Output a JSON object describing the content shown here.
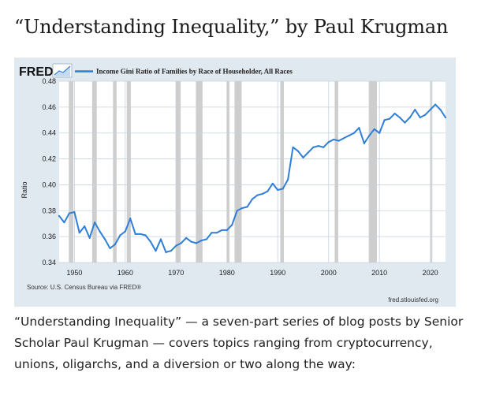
{
  "page": {
    "heading": "“Understanding Inequality,” by Paul Krugman",
    "caption": "“Understanding Inequality” — a seven-part series of blog posts by Senior Scholar Paul Krugman — covers topics ranging from cryptocurrency, unions, oligarchs, and a diversion or two along the way:"
  },
  "chart_data": {
    "type": "line",
    "logo_text": "FRED",
    "title": "Income Gini Ratio of Families by Race of Householder, All Races",
    "ylabel": "Ratio",
    "xlabel": "",
    "source": "Source: U.S. Census Bureau via FRED®",
    "site": "fred.stlouisfed.org",
    "line_color": "#2f7ed8",
    "recession_color": "#c9c9c9",
    "xlim": [
      1947,
      2023
    ],
    "ylim": [
      0.34,
      0.48
    ],
    "x_ticks": [
      1950,
      1960,
      1970,
      1980,
      1990,
      2000,
      2010,
      2020
    ],
    "y_ticks": [
      "0.34",
      "0.36",
      "0.38",
      "0.40",
      "0.42",
      "0.44",
      "0.46",
      "0.48"
    ],
    "recessions": [
      [
        1948.9,
        1949.8
      ],
      [
        1953.5,
        1954.4
      ],
      [
        1957.6,
        1958.3
      ],
      [
        1960.3,
        1961.1
      ],
      [
        1969.9,
        1970.9
      ],
      [
        1973.9,
        1975.2
      ],
      [
        1980.0,
        1980.5
      ],
      [
        1981.5,
        1982.9
      ],
      [
        1990.5,
        1991.2
      ],
      [
        2001.2,
        2001.9
      ],
      [
        2007.9,
        2009.5
      ],
      [
        2020.1,
        2020.4
      ]
    ],
    "series": [
      {
        "name": "Income Gini Ratio of Families by Race of Householder, All Races",
        "x": [
          1947,
          1948,
          1949,
          1950,
          1951,
          1952,
          1953,
          1954,
          1955,
          1956,
          1957,
          1958,
          1959,
          1960,
          1961,
          1962,
          1963,
          1964,
          1965,
          1966,
          1967,
          1968,
          1969,
          1970,
          1971,
          1972,
          1973,
          1974,
          1975,
          1976,
          1977,
          1978,
          1979,
          1980,
          1981,
          1982,
          1983,
          1984,
          1985,
          1986,
          1987,
          1988,
          1989,
          1990,
          1991,
          1992,
          1993,
          1994,
          1995,
          1996,
          1997,
          1998,
          1999,
          2000,
          2001,
          2002,
          2003,
          2004,
          2005,
          2006,
          2007,
          2008,
          2009,
          2010,
          2011,
          2012,
          2013,
          2014,
          2015,
          2016,
          2017,
          2018,
          2019,
          2020,
          2021,
          2022,
          2023
        ],
        "values": [
          0.376,
          0.371,
          0.378,
          0.379,
          0.363,
          0.368,
          0.359,
          0.371,
          0.364,
          0.358,
          0.351,
          0.354,
          0.361,
          0.364,
          0.374,
          0.362,
          0.362,
          0.361,
          0.356,
          0.349,
          0.358,
          0.348,
          0.349,
          0.353,
          0.355,
          0.359,
          0.356,
          0.355,
          0.357,
          0.358,
          0.363,
          0.363,
          0.365,
          0.365,
          0.369,
          0.38,
          0.382,
          0.383,
          0.389,
          0.392,
          0.393,
          0.395,
          0.401,
          0.396,
          0.397,
          0.404,
          0.429,
          0.426,
          0.421,
          0.425,
          0.429,
          0.43,
          0.429,
          0.433,
          0.435,
          0.434,
          0.436,
          0.438,
          0.44,
          0.444,
          0.432,
          0.438,
          0.443,
          0.44,
          0.45,
          0.451,
          0.455,
          0.452,
          0.448,
          0.452,
          0.458,
          0.452,
          0.454,
          0.458,
          0.462,
          0.458,
          0.452
        ]
      }
    ]
  }
}
